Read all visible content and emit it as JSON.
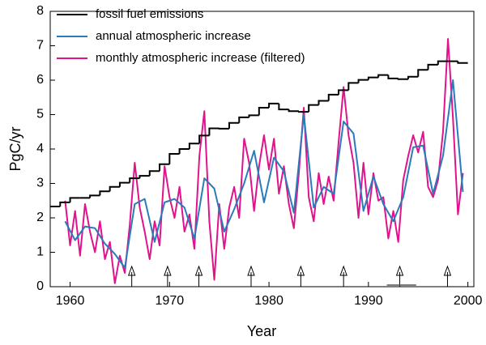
{
  "chart_data": {
    "type": "line",
    "xlabel": "Year",
    "ylabel": "PgC/yr",
    "xlim": [
      1958,
      2000.6
    ],
    "ylim": [
      0,
      8
    ],
    "xticks": [
      1960,
      1970,
      1980,
      1990,
      2000
    ],
    "yticks": [
      0,
      1,
      2,
      3,
      4,
      5,
      6,
      7,
      8
    ],
    "grid": false,
    "legend": "top-left",
    "series": [
      {
        "name": "fossil fuel emissions",
        "color": "#000000",
        "step": true,
        "x": [
          1958,
          1959,
          1960,
          1961,
          1962,
          1963,
          1964,
          1965,
          1966,
          1967,
          1968,
          1969,
          1970,
          1971,
          1972,
          1973,
          1974,
          1975,
          1976,
          1977,
          1978,
          1979,
          1980,
          1981,
          1982,
          1983,
          1984,
          1985,
          1986,
          1987,
          1988,
          1989,
          1990,
          1991,
          1992,
          1993,
          1994,
          1995,
          1996,
          1997,
          1998,
          1999
        ],
        "values": [
          2.33,
          2.45,
          2.58,
          2.58,
          2.65,
          2.77,
          2.9,
          3.02,
          3.15,
          3.22,
          3.36,
          3.56,
          3.86,
          4.0,
          4.16,
          4.39,
          4.6,
          4.59,
          4.76,
          4.92,
          4.98,
          5.2,
          5.32,
          5.15,
          5.1,
          5.08,
          5.28,
          5.4,
          5.58,
          5.71,
          5.92,
          6.01,
          6.08,
          6.15,
          6.05,
          6.03,
          6.1,
          6.3,
          6.45,
          6.55,
          6.55,
          6.5
        ]
      },
      {
        "name": "annual atmospheric increase",
        "color": "#2b7bba",
        "x": [
          1959.5,
          1960.5,
          1961.5,
          1962.5,
          1963.5,
          1964.5,
          1965.5,
          1966.5,
          1967.5,
          1968.5,
          1969.5,
          1970.5,
          1971.5,
          1972.5,
          1973.5,
          1974.5,
          1975.5,
          1976.5,
          1977.5,
          1978.5,
          1979.5,
          1980.5,
          1981.5,
          1982.5,
          1983.5,
          1984.5,
          1985.5,
          1986.5,
          1987.5,
          1988.5,
          1989.5,
          1990.5,
          1991.5,
          1992.5,
          1993.5,
          1994.5,
          1995.5,
          1996.5,
          1997.5,
          1998.5,
          1999.5
        ],
        "values": [
          1.9,
          1.35,
          1.75,
          1.7,
          1.25,
          0.95,
          0.55,
          2.4,
          2.55,
          1.3,
          2.45,
          2.55,
          2.3,
          1.4,
          3.15,
          2.85,
          1.6,
          2.25,
          3.0,
          3.95,
          2.45,
          3.75,
          3.35,
          2.15,
          5.0,
          2.3,
          2.9,
          2.7,
          4.8,
          4.45,
          2.2,
          3.2,
          2.4,
          1.9,
          2.6,
          4.05,
          4.1,
          2.7,
          3.8,
          6.0,
          2.75
        ]
      },
      {
        "name": "monthly atmospheric increase (filtered)",
        "color": "#e0138c",
        "x": [
          1959.5,
          1960,
          1960.5,
          1961,
          1961.5,
          1962,
          1962.5,
          1963,
          1963.5,
          1964,
          1964.5,
          1965,
          1965.5,
          1966,
          1966.5,
          1967,
          1967.5,
          1968,
          1968.5,
          1969,
          1969.5,
          1970,
          1970.5,
          1971,
          1971.5,
          1972,
          1972.5,
          1973,
          1973.5,
          1974,
          1974.5,
          1975,
          1975.5,
          1976,
          1976.5,
          1977,
          1977.5,
          1978,
          1978.5,
          1979,
          1979.5,
          1980,
          1980.5,
          1981,
          1981.5,
          1982,
          1982.5,
          1983,
          1983.5,
          1984,
          1984.5,
          1985,
          1985.5,
          1986,
          1986.5,
          1987,
          1987.5,
          1988,
          1988.5,
          1989,
          1989.5,
          1990,
          1990.5,
          1991,
          1991.5,
          1992,
          1992.5,
          1993,
          1993.5,
          1994,
          1994.5,
          1995,
          1995.5,
          1996,
          1996.5,
          1997,
          1997.5,
          1998,
          1998.5,
          1999,
          1999.5
        ],
        "values": [
          2.5,
          1.2,
          2.2,
          0.9,
          2.4,
          1.6,
          1.0,
          1.9,
          0.8,
          1.3,
          0.1,
          0.9,
          0.4,
          1.8,
          3.6,
          2.3,
          1.6,
          0.8,
          1.9,
          1.2,
          3.5,
          2.6,
          2.0,
          2.9,
          1.6,
          2.1,
          1.1,
          3.8,
          5.1,
          1.9,
          0.2,
          2.4,
          1.1,
          2.3,
          2.9,
          2.0,
          4.3,
          3.6,
          2.2,
          3.5,
          4.4,
          3.4,
          4.3,
          2.7,
          3.5,
          2.4,
          1.7,
          3.3,
          5.2,
          2.6,
          1.9,
          3.3,
          2.4,
          3.2,
          2.5,
          4.2,
          5.8,
          4.4,
          3.6,
          2.0,
          3.6,
          2.1,
          3.3,
          2.5,
          2.6,
          1.4,
          2.2,
          1.3,
          3.1,
          3.8,
          4.4,
          3.9,
          4.5,
          2.9,
          2.6,
          3.1,
          4.5,
          7.2,
          4.9,
          2.1,
          3.3
        ]
      }
    ],
    "event_arrows": [
      1966.2,
      1969.8,
      1972.95,
      1978.2,
      1983.2,
      1987.5,
      1993.15,
      1997.95
    ],
    "event_span": [
      1991.85,
      1994.8
    ]
  }
}
